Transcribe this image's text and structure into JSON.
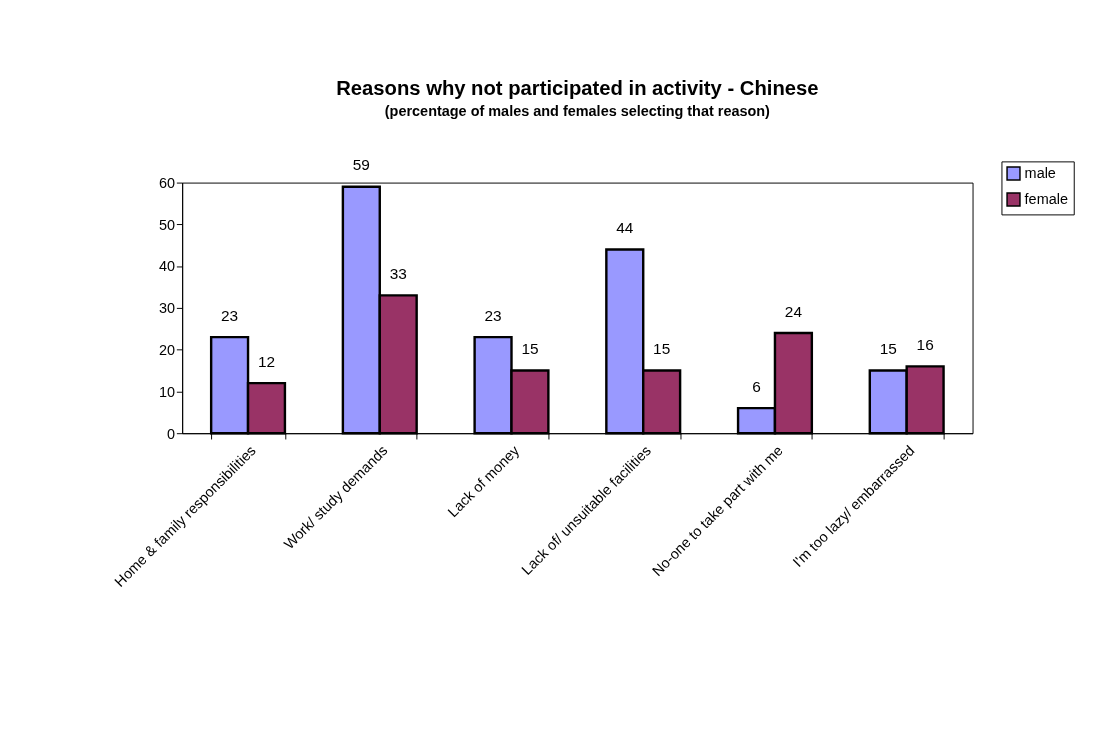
{
  "chart_data": {
    "type": "bar",
    "title": "Reasons why not participated in activity - Chinese",
    "subtitle": "(percentage of males and females selecting that reason)",
    "categories": [
      "Home & family responsibilities",
      "Work/ study demands",
      "Lack of money",
      "Lack of/ unsuitable facilities",
      "No-one to take part with me",
      "I'm too lazy/ embarrassed"
    ],
    "series": [
      {
        "name": "male",
        "color": "#9999ff",
        "values": [
          23,
          59,
          23,
          44,
          6,
          15
        ]
      },
      {
        "name": "female",
        "color": "#993366",
        "values": [
          12,
          33,
          15,
          15,
          24,
          16
        ]
      }
    ],
    "ylim": [
      0,
      60
    ],
    "yticks": [
      0,
      10,
      20,
      30,
      40,
      50,
      60
    ],
    "grid": false,
    "legend": "top right",
    "data_labels": true
  }
}
